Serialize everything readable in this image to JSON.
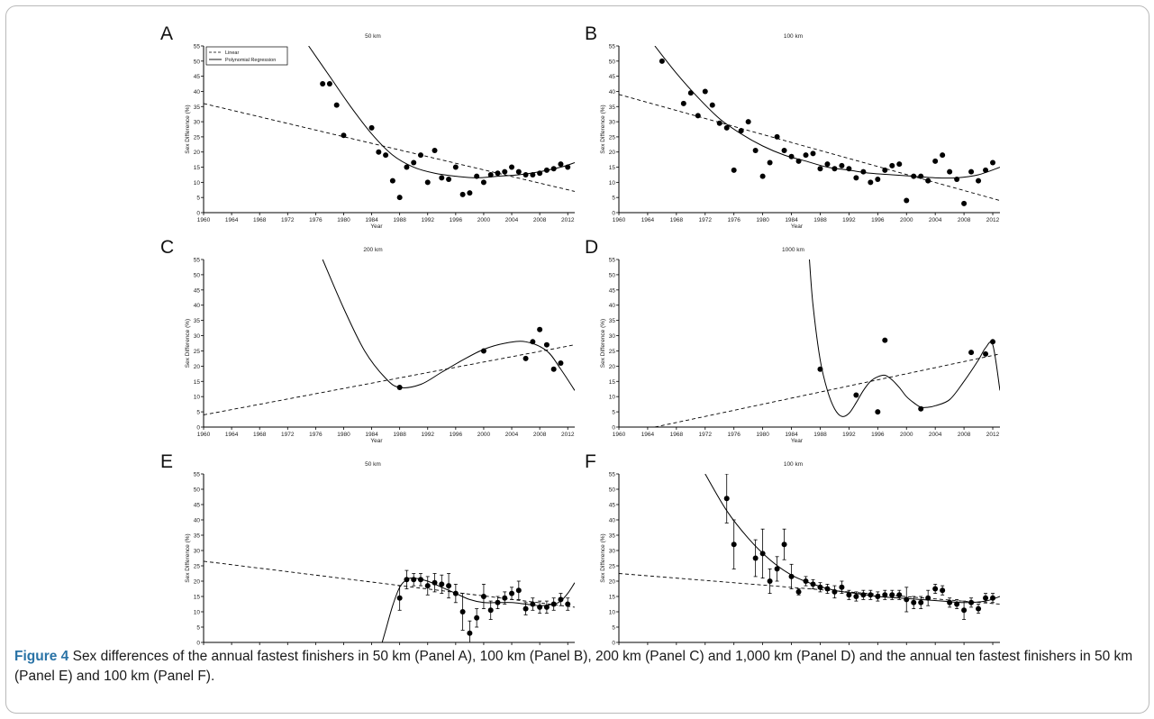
{
  "figure": {
    "caption_label": "Figure 4",
    "caption_text": " Sex differences of the annual fastest finishers in 50 km (Panel A), 100 km (Panel B), 200 km (Panel C) and 1,000 km (Panel D) and the annual ten fastest finishers in 50 km (Panel E) and 100 km (Panel F).",
    "legend": {
      "linear": "Linear",
      "poly": "Polynomial Regression"
    }
  },
  "chart_data": [
    {
      "id": "A",
      "type": "scatter",
      "title": "50 km",
      "xlabel": "Year",
      "ylabel": "Sex Difference (%)",
      "xlim": [
        1960,
        2013
      ],
      "ylim": [
        0,
        55
      ],
      "xticks": [
        1960,
        1964,
        1968,
        1972,
        1976,
        1980,
        1984,
        1988,
        1992,
        1996,
        2000,
        2004,
        2008,
        2012
      ],
      "yticks": [
        0,
        5,
        10,
        15,
        20,
        25,
        30,
        35,
        40,
        45,
        50,
        55
      ],
      "points": [
        [
          1977,
          42.5
        ],
        [
          1978,
          42.5
        ],
        [
          1979,
          35.5
        ],
        [
          1980,
          25.5
        ],
        [
          1984,
          28
        ],
        [
          1985,
          20
        ],
        [
          1986,
          19
        ],
        [
          1987,
          10.5
        ],
        [
          1988,
          5
        ],
        [
          1989,
          15
        ],
        [
          1990,
          16.5
        ],
        [
          1991,
          19
        ],
        [
          1992,
          10
        ],
        [
          1993,
          20.5
        ],
        [
          1994,
          11.5
        ],
        [
          1995,
          11
        ],
        [
          1996,
          15
        ],
        [
          1997,
          6
        ],
        [
          1998,
          6.5
        ],
        [
          1999,
          12
        ],
        [
          2000,
          10
        ],
        [
          2001,
          12.5
        ],
        [
          2002,
          13
        ],
        [
          2003,
          13.5
        ],
        [
          2004,
          15
        ],
        [
          2005,
          13.5
        ],
        [
          2006,
          12.5
        ],
        [
          2007,
          12.5
        ],
        [
          2008,
          13
        ],
        [
          2009,
          14
        ],
        [
          2010,
          14.5
        ],
        [
          2011,
          16
        ],
        [
          2012,
          15
        ]
      ],
      "linear": [
        [
          1960,
          36
        ],
        [
          2013,
          7
        ]
      ],
      "poly": [
        [
          1975,
          55
        ],
        [
          1978,
          45
        ],
        [
          1981,
          35
        ],
        [
          1984,
          26
        ],
        [
          1987,
          19
        ],
        [
          1990,
          15
        ],
        [
          1993,
          13
        ],
        [
          1996,
          12
        ],
        [
          1999,
          11.5
        ],
        [
          2002,
          12
        ],
        [
          2005,
          12.5
        ],
        [
          2008,
          13.5
        ],
        [
          2011,
          15
        ],
        [
          2013,
          16.5
        ]
      ]
    },
    {
      "id": "B",
      "type": "scatter",
      "title": "100 km",
      "xlabel": "Year",
      "ylabel": "Sex Difference (%)",
      "xlim": [
        1960,
        2013
      ],
      "ylim": [
        0,
        55
      ],
      "xticks": [
        1960,
        1964,
        1968,
        1972,
        1976,
        1980,
        1984,
        1988,
        1992,
        1996,
        2000,
        2004,
        2008,
        2012
      ],
      "yticks": [
        0,
        5,
        10,
        15,
        20,
        25,
        30,
        35,
        40,
        45,
        50,
        55
      ],
      "points": [
        [
          1966,
          50
        ],
        [
          1969,
          36
        ],
        [
          1970,
          39.5
        ],
        [
          1971,
          32
        ],
        [
          1972,
          40
        ],
        [
          1973,
          35.5
        ],
        [
          1974,
          29.5
        ],
        [
          1975,
          28
        ],
        [
          1976,
          14
        ],
        [
          1977,
          27
        ],
        [
          1978,
          30
        ],
        [
          1979,
          20.5
        ],
        [
          1980,
          12
        ],
        [
          1981,
          16.5
        ],
        [
          1982,
          25
        ],
        [
          1983,
          20.5
        ],
        [
          1984,
          18.5
        ],
        [
          1985,
          17
        ],
        [
          1986,
          19
        ],
        [
          1987,
          19.5
        ],
        [
          1988,
          14.5
        ],
        [
          1989,
          16
        ],
        [
          1990,
          14.5
        ],
        [
          1991,
          15.5
        ],
        [
          1992,
          14.5
        ],
        [
          1993,
          11.5
        ],
        [
          1994,
          13.5
        ],
        [
          1995,
          10
        ],
        [
          1996,
          11
        ],
        [
          1997,
          14
        ],
        [
          1998,
          15.5
        ],
        [
          1999,
          16
        ],
        [
          2000,
          4
        ],
        [
          2001,
          12
        ],
        [
          2002,
          12
        ],
        [
          2003,
          10.5
        ],
        [
          2004,
          17
        ],
        [
          2005,
          19
        ],
        [
          2006,
          13.5
        ],
        [
          2007,
          11
        ],
        [
          2008,
          3
        ],
        [
          2009,
          13.5
        ],
        [
          2010,
          10.5
        ],
        [
          2011,
          14
        ],
        [
          2012,
          16.5
        ]
      ],
      "linear": [
        [
          1960,
          39
        ],
        [
          2013,
          4
        ]
      ],
      "poly": [
        [
          1965,
          55
        ],
        [
          1968,
          46
        ],
        [
          1971,
          38
        ],
        [
          1974,
          31
        ],
        [
          1977,
          26
        ],
        [
          1980,
          22
        ],
        [
          1983,
          19
        ],
        [
          1986,
          17
        ],
        [
          1989,
          15
        ],
        [
          1992,
          14
        ],
        [
          1995,
          13
        ],
        [
          1998,
          12.5
        ],
        [
          2001,
          12
        ],
        [
          2004,
          11.5
        ],
        [
          2007,
          11.5
        ],
        [
          2010,
          12.5
        ],
        [
          2013,
          15
        ]
      ]
    },
    {
      "id": "C",
      "type": "scatter",
      "title": "200 km",
      "xlabel": "Year",
      "ylabel": "Sex Difference (%)",
      "xlim": [
        1960,
        2013
      ],
      "ylim": [
        0,
        55
      ],
      "xticks": [
        1960,
        1964,
        1968,
        1972,
        1976,
        1980,
        1984,
        1988,
        1992,
        1996,
        2000,
        2004,
        2008,
        2012
      ],
      "yticks": [
        0,
        5,
        10,
        15,
        20,
        25,
        30,
        35,
        40,
        45,
        50,
        55
      ],
      "points": [
        [
          1988,
          13
        ],
        [
          2000,
          25
        ],
        [
          2006,
          22.5
        ],
        [
          2007,
          28
        ],
        [
          2008,
          32
        ],
        [
          2009,
          27
        ],
        [
          2010,
          19
        ],
        [
          2011,
          21
        ]
      ],
      "linear": [
        [
          1960,
          4
        ],
        [
          2013,
          27
        ]
      ],
      "poly": [
        [
          1977,
          55
        ],
        [
          1980,
          39
        ],
        [
          1983,
          25
        ],
        [
          1986,
          16
        ],
        [
          1988,
          13
        ],
        [
          1991,
          14
        ],
        [
          1994,
          18
        ],
        [
          1997,
          22
        ],
        [
          2000,
          25.5
        ],
        [
          2003,
          27.5
        ],
        [
          2006,
          28
        ],
        [
          2009,
          25
        ],
        [
          2011,
          19
        ],
        [
          2013,
          12
        ]
      ]
    },
    {
      "id": "D",
      "type": "scatter",
      "title": "1000 km",
      "xlabel": "Year",
      "ylabel": "Sex Difference (%)",
      "xlim": [
        1960,
        2013
      ],
      "ylim": [
        0,
        55
      ],
      "xticks": [
        1960,
        1964,
        1968,
        1972,
        1976,
        1980,
        1984,
        1988,
        1992,
        1996,
        2000,
        2004,
        2008,
        2012
      ],
      "yticks": [
        0,
        5,
        10,
        15,
        20,
        25,
        30,
        35,
        40,
        45,
        50,
        55
      ],
      "points": [
        [
          1988,
          19
        ],
        [
          1993,
          10.5
        ],
        [
          1996,
          5
        ],
        [
          1997,
          28.5
        ],
        [
          2002,
          6
        ],
        [
          2009,
          24.5
        ],
        [
          2011,
          24
        ],
        [
          2012,
          28
        ]
      ],
      "linear": [
        [
          1965,
          0
        ],
        [
          2013,
          24
        ]
      ],
      "poly": [
        [
          1986.5,
          55
        ],
        [
          1987,
          40
        ],
        [
          1988,
          22
        ],
        [
          1989,
          12
        ],
        [
          1990,
          6
        ],
        [
          1991,
          3.5
        ],
        [
          1992,
          4.5
        ],
        [
          1993,
          8
        ],
        [
          1994,
          12
        ],
        [
          1995,
          15
        ],
        [
          1996,
          16.5
        ],
        [
          1997,
          17
        ],
        [
          1998,
          15.5
        ],
        [
          1999,
          13
        ],
        [
          2000,
          10
        ],
        [
          2001,
          8
        ],
        [
          2002,
          6.5
        ],
        [
          2003,
          6.5
        ],
        [
          2004,
          7
        ],
        [
          2006,
          9
        ],
        [
          2008,
          15
        ],
        [
          2010,
          22
        ],
        [
          2011,
          26
        ],
        [
          2012,
          27
        ],
        [
          2013,
          12
        ]
      ]
    },
    {
      "id": "E",
      "type": "scatter",
      "title": "50 km",
      "xlabel": "Year",
      "ylabel": "Sex Difference (%)",
      "xlim": [
        1960,
        2013
      ],
      "ylim": [
        0,
        55
      ],
      "xticks": [
        1960,
        1964,
        1968,
        1972,
        1976,
        1980,
        1984,
        1988,
        1992,
        1996,
        2000,
        2004,
        2008,
        2012
      ],
      "yticks": [
        0,
        5,
        10,
        15,
        20,
        25,
        30,
        35,
        40,
        45,
        50,
        55
      ],
      "points": [
        [
          1988,
          14.5,
          4
        ],
        [
          1989,
          20.5,
          3
        ],
        [
          1990,
          20.5,
          2
        ],
        [
          1991,
          20.5,
          2
        ],
        [
          1992,
          18.5,
          3
        ],
        [
          1993,
          19.5,
          3
        ],
        [
          1994,
          19,
          3
        ],
        [
          1995,
          18.5,
          4
        ],
        [
          1996,
          16,
          3
        ],
        [
          1997,
          10,
          6
        ],
        [
          1998,
          3,
          4
        ],
        [
          1999,
          8,
          3
        ],
        [
          2000,
          15,
          4
        ],
        [
          2001,
          10.5,
          3
        ],
        [
          2002,
          13,
          2
        ],
        [
          2003,
          14.5,
          2
        ],
        [
          2004,
          16,
          2
        ],
        [
          2005,
          17,
          3
        ],
        [
          2006,
          11,
          2
        ],
        [
          2007,
          12.5,
          2
        ],
        [
          2008,
          11.5,
          2
        ],
        [
          2009,
          11.5,
          2
        ],
        [
          2010,
          12.5,
          2
        ],
        [
          2011,
          14,
          2
        ],
        [
          2012,
          12.5,
          2
        ]
      ],
      "linear": [
        [
          1960,
          26.5
        ],
        [
          2013,
          11.5
        ]
      ],
      "poly": [
        [
          1985.5,
          0
        ],
        [
          1986,
          4
        ],
        [
          1987,
          12
        ],
        [
          1988,
          18
        ],
        [
          1989,
          20.5
        ],
        [
          1990,
          21
        ],
        [
          1992,
          20
        ],
        [
          1994,
          18
        ],
        [
          1996,
          16
        ],
        [
          1998,
          14
        ],
        [
          2000,
          13
        ],
        [
          2002,
          13
        ],
        [
          2004,
          13
        ],
        [
          2006,
          12.5
        ],
        [
          2008,
          12
        ],
        [
          2010,
          12.5
        ],
        [
          2011,
          13.5
        ],
        [
          2012,
          16
        ],
        [
          2013,
          19.5
        ]
      ]
    },
    {
      "id": "F",
      "type": "scatter",
      "title": "100 km",
      "xlabel": "Year",
      "ylabel": "Sex Difference (%)",
      "xlim": [
        1960,
        2013
      ],
      "ylim": [
        0,
        55
      ],
      "xticks": [
        1960,
        1964,
        1968,
        1972,
        1976,
        1980,
        1984,
        1988,
        1992,
        1996,
        2000,
        2004,
        2008,
        2012
      ],
      "yticks": [
        0,
        5,
        10,
        15,
        20,
        25,
        30,
        35,
        40,
        45,
        50,
        55
      ],
      "points": [
        [
          1975,
          47,
          8
        ],
        [
          1976,
          32,
          8
        ],
        [
          1979,
          27.5,
          6
        ],
        [
          1980,
          29,
          8
        ],
        [
          1981,
          20,
          4
        ],
        [
          1982,
          24,
          4
        ],
        [
          1983,
          32,
          5
        ],
        [
          1984,
          21.5,
          4
        ],
        [
          1985,
          16.5,
          1
        ],
        [
          1986,
          20,
          1.5
        ],
        [
          1987,
          19,
          1.5
        ],
        [
          1988,
          18,
          1.5
        ],
        [
          1989,
          17.5,
          1.5
        ],
        [
          1990,
          16.5,
          2
        ],
        [
          1991,
          18,
          2
        ],
        [
          1992,
          15.5,
          1.5
        ],
        [
          1993,
          15,
          1.5
        ],
        [
          1994,
          15.5,
          1.5
        ],
        [
          1995,
          15.5,
          1.5
        ],
        [
          1996,
          15,
          1.5
        ],
        [
          1997,
          15.5,
          1.5
        ],
        [
          1998,
          15.5,
          1.5
        ],
        [
          1999,
          15.5,
          1.5
        ],
        [
          2000,
          14,
          4
        ],
        [
          2001,
          13,
          2
        ],
        [
          2002,
          13,
          2
        ],
        [
          2003,
          14.5,
          2.5
        ],
        [
          2004,
          17.5,
          1.5
        ],
        [
          2005,
          17,
          1.5
        ],
        [
          2006,
          13,
          1.5
        ],
        [
          2007,
          12.5,
          1.5
        ],
        [
          2008,
          10.5,
          3
        ],
        [
          2009,
          13,
          1.5
        ],
        [
          2010,
          11,
          1.5
        ],
        [
          2011,
          14.5,
          1.5
        ],
        [
          2012,
          14.5,
          1.5
        ]
      ],
      "linear": [
        [
          1960,
          22.5
        ],
        [
          2013,
          12.5
        ]
      ],
      "poly": [
        [
          1972,
          55
        ],
        [
          1975,
          43
        ],
        [
          1978,
          34
        ],
        [
          1981,
          27
        ],
        [
          1984,
          22
        ],
        [
          1987,
          19
        ],
        [
          1990,
          17
        ],
        [
          1993,
          16
        ],
        [
          1996,
          15
        ],
        [
          1999,
          14.5
        ],
        [
          2002,
          14
        ],
        [
          2005,
          13.5
        ],
        [
          2008,
          13
        ],
        [
          2011,
          13.5
        ],
        [
          2013,
          15
        ]
      ]
    }
  ]
}
